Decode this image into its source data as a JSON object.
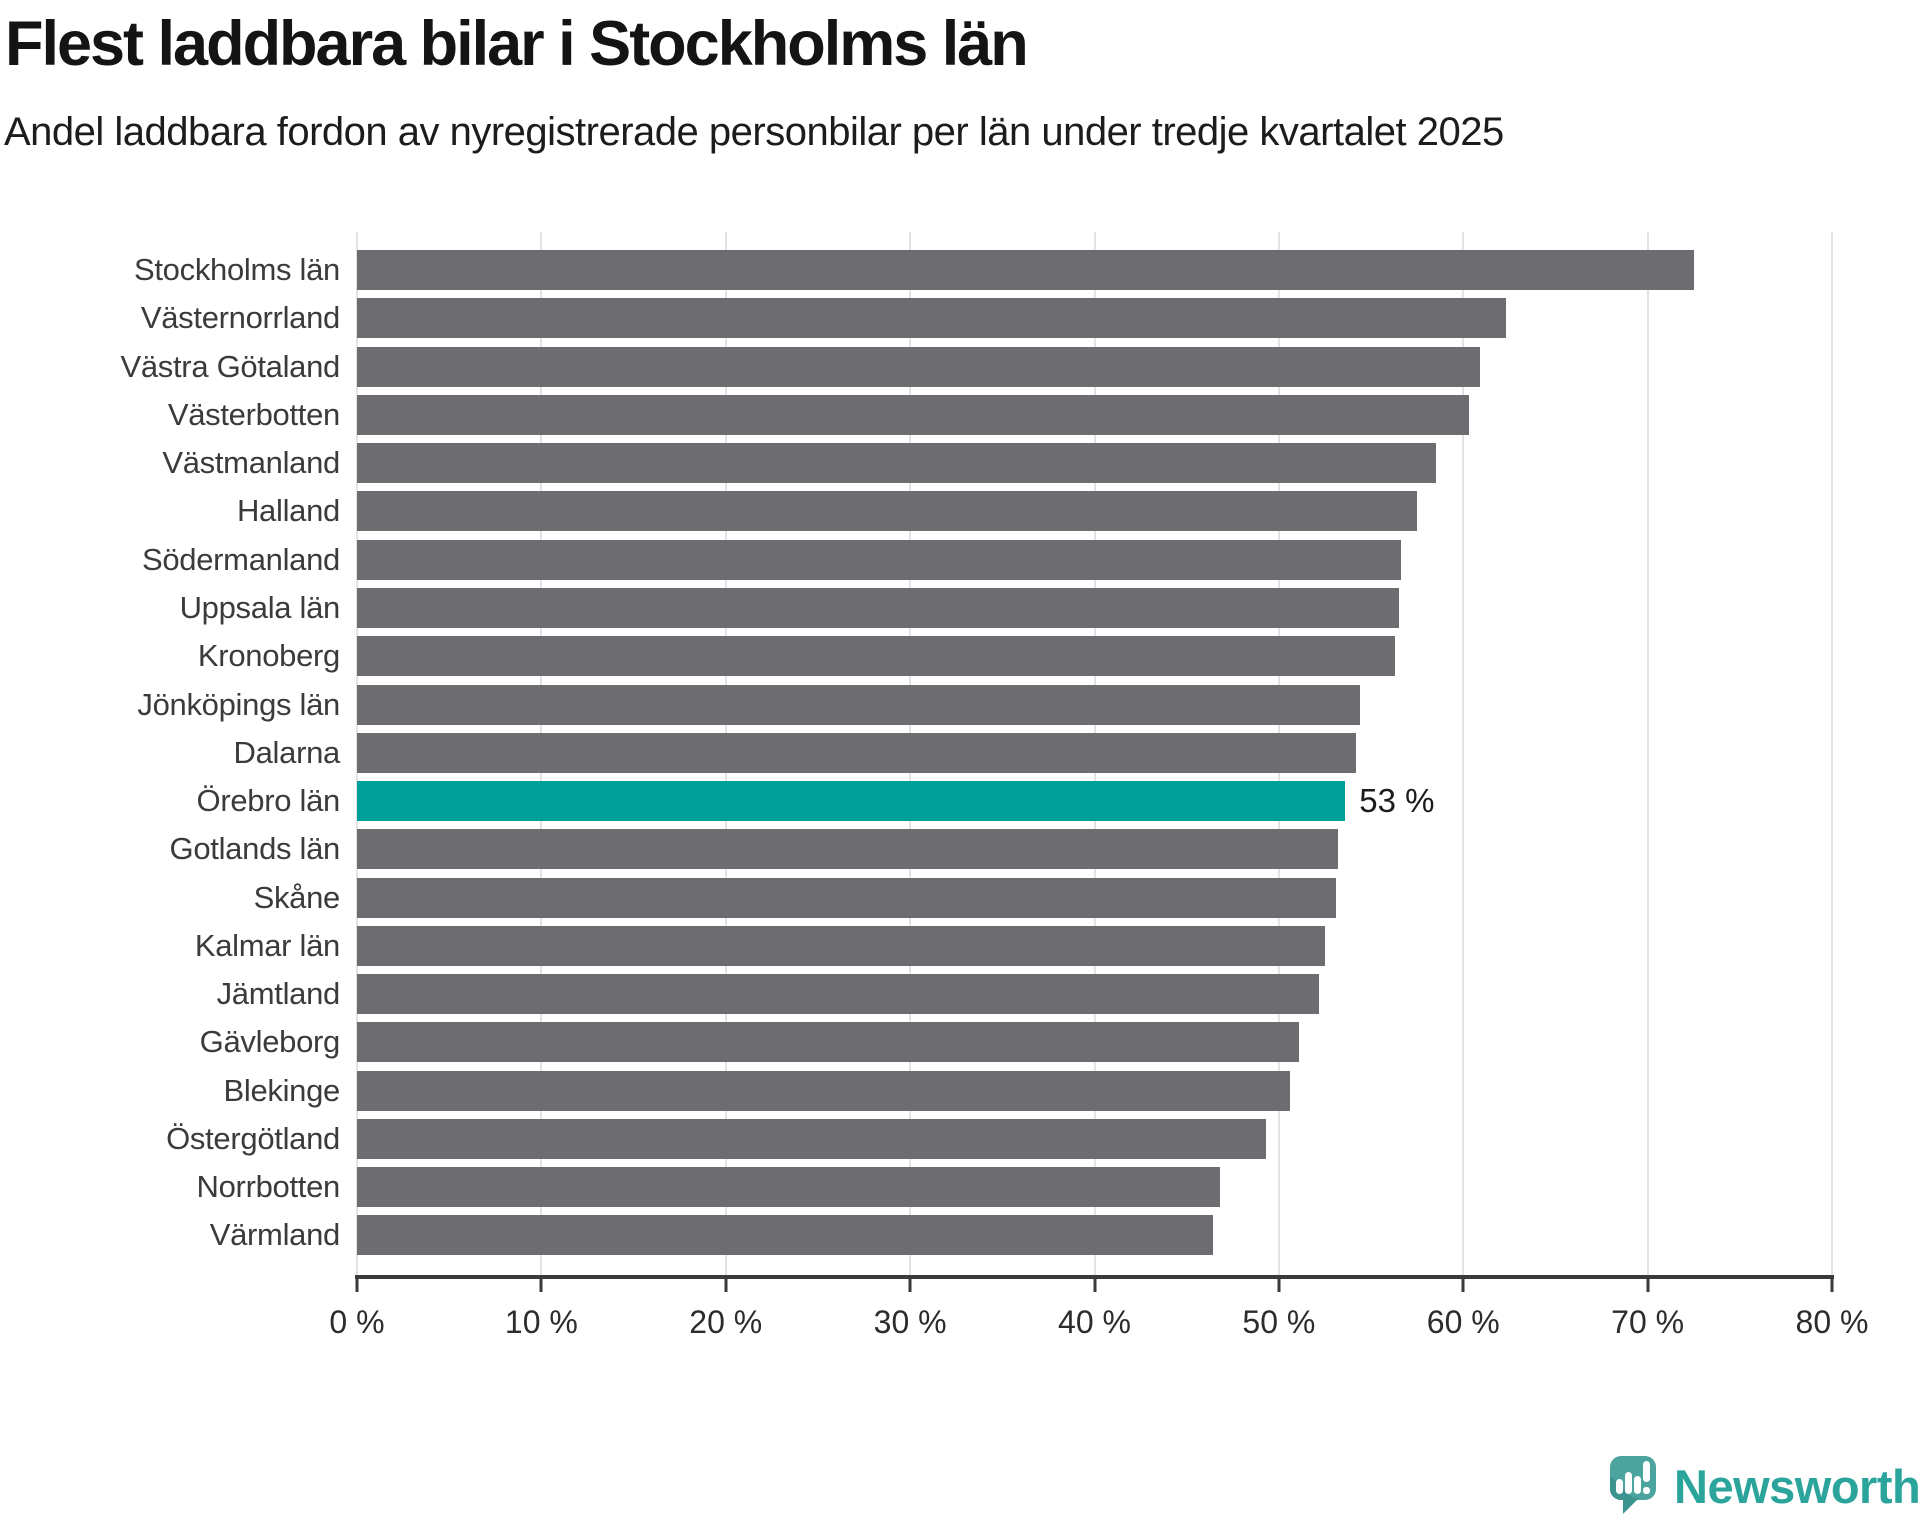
{
  "chart_data": {
    "type": "bar",
    "orientation": "horizontal",
    "title": "Flest laddbara bilar i Stockholms län",
    "subtitle": "Andel laddbara fordon av nyregistrerade personbilar per län under tredje kvartalet 2025",
    "categories": [
      "Stockholms län",
      "Västernorrland",
      "Västra Götaland",
      "Västerbotten",
      "Västmanland",
      "Halland",
      "Södermanland",
      "Uppsala län",
      "Kronoberg",
      "Jönköpings län",
      "Dalarna",
      "Örebro län",
      "Gotlands län",
      "Skåne",
      "Kalmar län",
      "Jämtland",
      "Gävleborg",
      "Blekinge",
      "Östergötland",
      "Norrbotten",
      "Värmland"
    ],
    "values": [
      72.5,
      62.3,
      60.9,
      60.3,
      58.5,
      57.5,
      56.6,
      56.5,
      56.3,
      54.4,
      54.2,
      53.6,
      53.2,
      53.1,
      52.5,
      52.2,
      51.1,
      50.6,
      49.3,
      46.8,
      46.4
    ],
    "highlight": {
      "category": "Örebro län",
      "index": 11,
      "value_label": "53 %"
    },
    "xlabel": "",
    "ylabel": "",
    "xlim": [
      0,
      80
    ],
    "x_ticks": [
      0,
      10,
      20,
      30,
      40,
      50,
      60,
      70,
      80
    ],
    "x_tick_labels": [
      "0 %",
      "10 %",
      "20 %",
      "30 %",
      "40 %",
      "50 %",
      "60 %",
      "70 %",
      "80 %"
    ],
    "grid": "vertical",
    "legend": "none",
    "colors": {
      "bar": "#6c6c71",
      "highlight": "#00a099",
      "gridline": "#e3e3e3",
      "axis": "#3a3a3a"
    }
  },
  "branding": {
    "logo_text": "Newsworthy",
    "logo_text_color": "#2ba49b",
    "logo_icon_color": "#4ba49d",
    "logo_icon": "speech-bubble-bar-chart-exclamation"
  }
}
